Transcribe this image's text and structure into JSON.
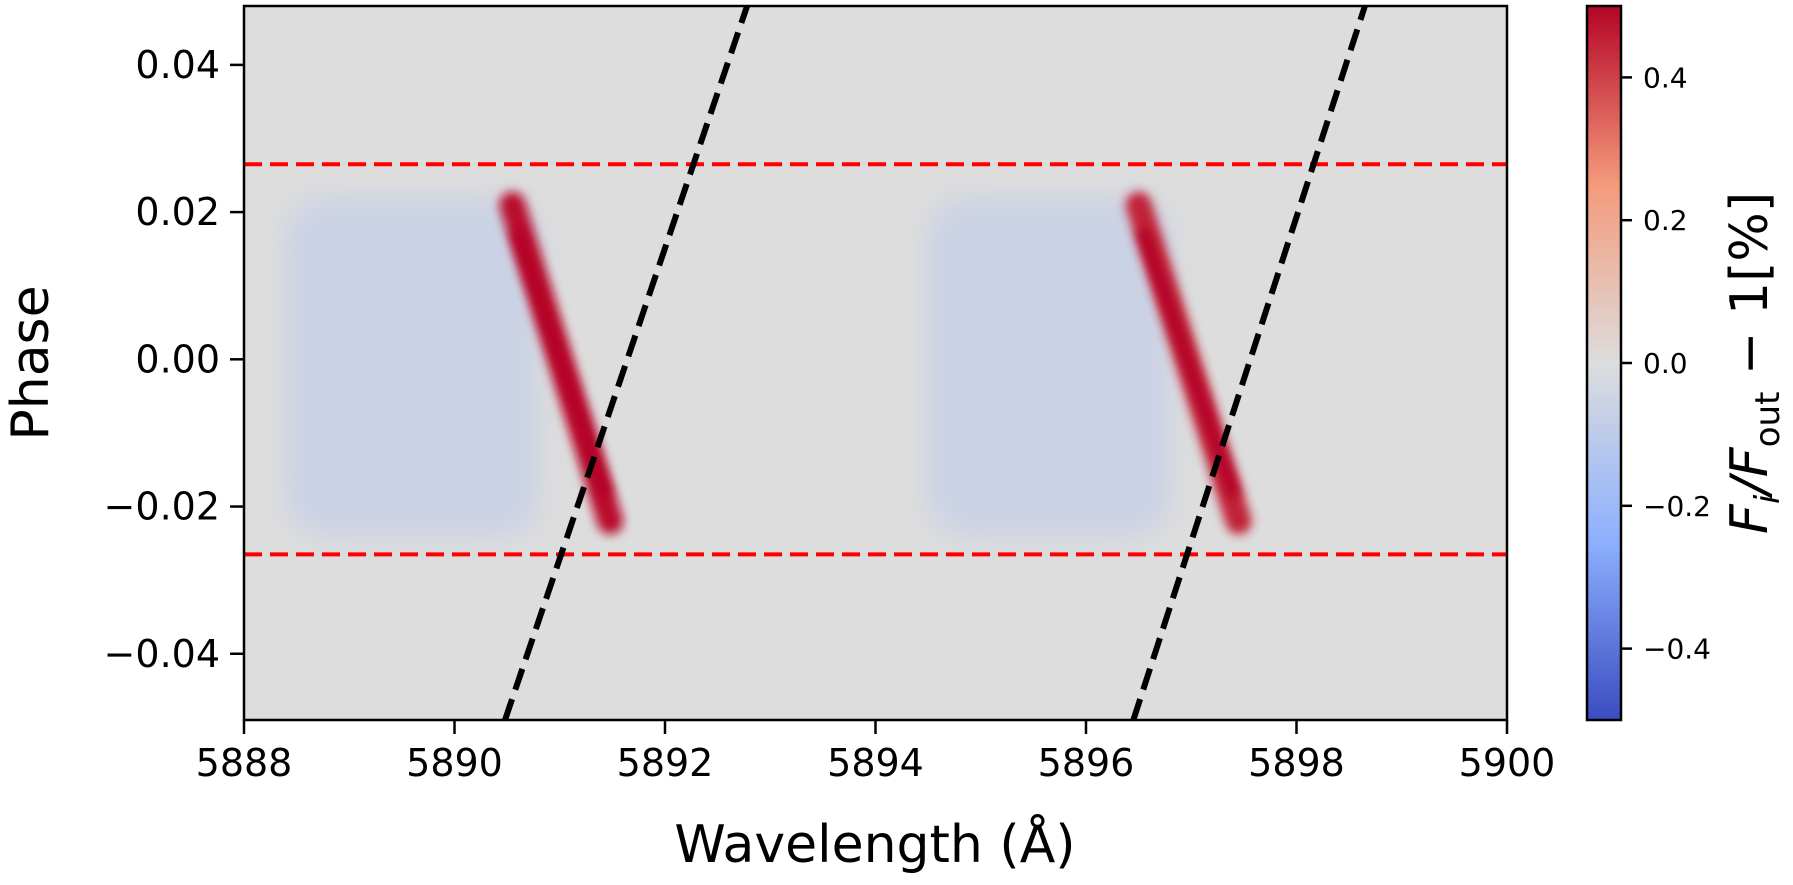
{
  "chart_data": {
    "type": "heatmap",
    "xlabel": "Wavelength (Å)",
    "ylabel": "Phase",
    "xlim": [
      5888,
      5900
    ],
    "ylim": [
      -0.049,
      0.048
    ],
    "x_ticks": [
      5888,
      5890,
      5892,
      5894,
      5896,
      5898,
      5900
    ],
    "x_tick_labels": [
      "5888",
      "5890",
      "5892",
      "5894",
      "5896",
      "5898",
      "5900"
    ],
    "y_ticks": [
      0.04,
      0.02,
      0.0,
      -0.02,
      -0.04
    ],
    "y_tick_labels": [
      "0.04",
      "0.02",
      "0.00",
      "−0.02",
      "−0.04"
    ],
    "colorbar": {
      "label_main": "F",
      "label_sub_i": "i",
      "label_slash": "/F",
      "label_sub_out": "out",
      "label_tail": " − 1[%]",
      "range": [
        -0.5,
        0.5
      ],
      "ticks": [
        0.4,
        0.2,
        0.0,
        -0.2,
        -0.4
      ],
      "tick_labels": [
        "0.4",
        "0.2",
        "0.0",
        "−0.2",
        "−0.4"
      ],
      "colormap": "coolwarm",
      "color_high": "#b40426",
      "color_mid": "#dddddd",
      "color_low": "#3b4cc0"
    },
    "transit_phase_limits": {
      "values": [
        0.0265,
        -0.0265
      ],
      "style": "dashed",
      "color": "#ff0000"
    },
    "planet_trails": [
      {
        "x_start": 5890.48,
        "y_start": -0.049,
        "x_end": 5892.78,
        "y_end": 0.048,
        "style": "dashed",
        "color": "#000000"
      },
      {
        "x_start": 5896.45,
        "y_start": -0.049,
        "x_end": 5898.65,
        "y_end": 0.048,
        "style": "dashed",
        "color": "#000000"
      }
    ],
    "absorption_features": [
      {
        "x_top": 5890.55,
        "y_top": 0.021,
        "x_bottom": 5891.48,
        "y_bottom": -0.022,
        "value": 0.48
      },
      {
        "x_top": 5896.5,
        "y_top": 0.021,
        "x_bottom": 5897.45,
        "y_bottom": -0.022,
        "value": 0.45
      }
    ],
    "background_value": 0.0,
    "negative_regions": [
      {
        "x_range": [
          5888.4,
          5890.8
        ],
        "y_range": [
          -0.024,
          0.022
        ],
        "value": -0.06
      },
      {
        "x_range": [
          5894.5,
          5896.8
        ],
        "y_range": [
          -0.024,
          0.022
        ],
        "value": -0.06
      }
    ]
  }
}
